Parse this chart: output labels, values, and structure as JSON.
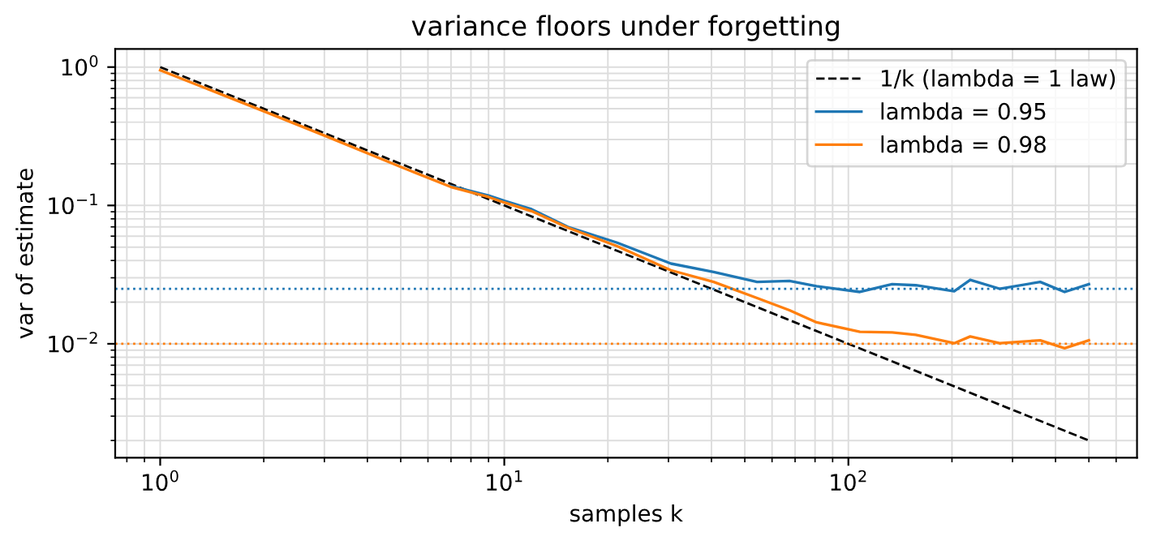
{
  "chart_data": {
    "type": "line",
    "title": "variance floors under forgetting",
    "xlabel": "samples k",
    "ylabel": "var of estimate",
    "log": "xy",
    "grid": true,
    "legend": "top right",
    "xlim": [
      0.74,
      690
    ],
    "ylim": [
      0.0015,
      1.35
    ],
    "xticks": [
      {
        "value": 1,
        "label": "10$^{0}$"
      },
      {
        "value": 10,
        "label": "10$^{1}$"
      },
      {
        "value": 100,
        "label": "10$^{2}$"
      }
    ],
    "yticks": [
      {
        "value": 0.01,
        "label": "10$^{−2}$"
      },
      {
        "value": 0.1,
        "label": "10$^{−1}$"
      },
      {
        "value": 1,
        "label": "10$^{0}$"
      }
    ],
    "series": [
      {
        "name": "1/k (lambda = 1 law)",
        "color": "#000000",
        "line_style": "dashed",
        "x": [
          1,
          10,
          100,
          500
        ],
        "values": [
          1,
          0.1,
          0.01,
          0.002
        ]
      },
      {
        "name": "lambda = 0.95",
        "color": "#1f77b4",
        "line_style": "solid",
        "x": [
          7,
          9,
          10,
          12,
          15.3,
          21.2,
          30.5,
          40.6,
          54.3,
          67.4,
          80.8,
          108,
          134,
          157,
          203,
          226,
          275,
          361,
          425,
          500
        ],
        "values": [
          0.138,
          0.118,
          0.108,
          0.094,
          0.07,
          0.054,
          0.038,
          0.033,
          0.028,
          0.0285,
          0.0261,
          0.0237,
          0.027,
          0.0265,
          0.024,
          0.029,
          0.025,
          0.028,
          0.0237,
          0.027
        ]
      },
      {
        "name": "lambda = 0.98",
        "color": "#ff7f0e",
        "line_style": "solid",
        "x": [
          1,
          2,
          3,
          5,
          7,
          9,
          10,
          12,
          15.3,
          21.2,
          30.5,
          40.6,
          54.3,
          67.4,
          80.8,
          108,
          134,
          157,
          203,
          226,
          275,
          361,
          425,
          500
        ],
        "values": [
          0.95,
          0.48,
          0.32,
          0.19,
          0.136,
          0.115,
          0.105,
          0.091,
          0.069,
          0.051,
          0.034,
          0.028,
          0.0214,
          0.0175,
          0.0143,
          0.0122,
          0.0121,
          0.0116,
          0.0101,
          0.0113,
          0.0101,
          0.0106,
          0.0093,
          0.0106
        ]
      }
    ],
    "ref_lines": [
      {
        "axis": "y",
        "value": 0.025,
        "color": "#1f77b4",
        "line_style": "dotted"
      },
      {
        "axis": "y",
        "value": 0.01,
        "color": "#ff7f0e",
        "line_style": "dotted"
      }
    ]
  }
}
